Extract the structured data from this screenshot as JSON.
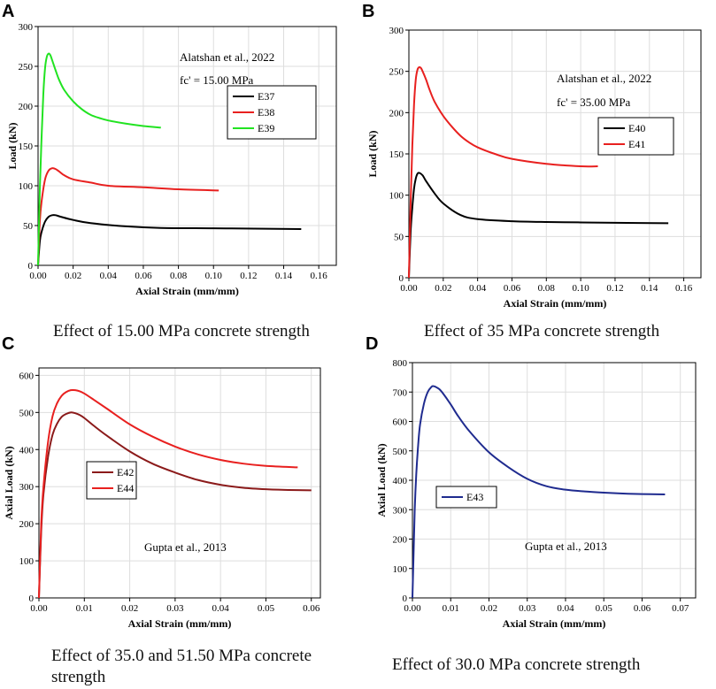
{
  "panels": [
    {
      "letter": "A",
      "caption": "Effect of 15.00 MPa concrete strength",
      "chart_data": {
        "type": "line",
        "title": "",
        "xlabel": "Axial Strain (mm/mm)",
        "ylabel": "Load (kN)",
        "xlim": [
          0,
          0.17
        ],
        "ylim": [
          0,
          300
        ],
        "xticks": [
          0,
          0.02,
          0.04,
          0.06,
          0.08,
          0.1,
          0.12,
          0.14,
          0.16
        ],
        "xtick_labels": [
          "0.00",
          "0.02",
          "0.04",
          "0.06",
          "0.08",
          "0.10",
          "0.12",
          "0.14",
          "0.16"
        ],
        "yticks": [
          0,
          50,
          100,
          150,
          200,
          250,
          300
        ],
        "ytick_labels": [
          "0",
          "50",
          "100",
          "150",
          "200",
          "250",
          "300"
        ],
        "grid": true,
        "annotations": [
          "Alatshan et al., 2022",
          "fc' = 15.00 MPa"
        ],
        "legend_position": "upper-right",
        "series": [
          {
            "name": "E37",
            "color": "#000000",
            "x": [
              0,
              0.001,
              0.002,
              0.004,
              0.006,
              0.008,
              0.01,
              0.013,
              0.02,
              0.03,
              0.05,
              0.07,
              0.1,
              0.13,
              0.15
            ],
            "y": [
              0,
              30,
              42,
              55,
              61,
              63,
              63,
              61,
              57,
              53,
              49,
              47,
              46.5,
              46,
              45.5
            ]
          },
          {
            "name": "E38",
            "color": "#e8201f",
            "x": [
              0,
              0.001,
              0.002,
              0.004,
              0.006,
              0.008,
              0.01,
              0.012,
              0.015,
              0.02,
              0.03,
              0.04,
              0.06,
              0.08,
              0.103
            ],
            "y": [
              0,
              55,
              80,
              108,
              119,
              122,
              121,
              118,
              113,
              108,
              104,
              100,
              98,
              95.5,
              94
            ]
          },
          {
            "name": "E39",
            "color": "#21e321",
            "x": [
              0,
              0.001,
              0.002,
              0.003,
              0.004,
              0.005,
              0.006,
              0.007,
              0.008,
              0.01,
              0.012,
              0.015,
              0.02,
              0.025,
              0.03,
              0.035,
              0.04,
              0.05,
              0.06,
              0.07
            ],
            "y": [
              0,
              95,
              160,
              215,
              248,
              262,
              266,
              264,
              258,
              245,
              233,
              220,
              206,
              196,
              189,
              185,
              182,
              178,
              175,
              173
            ]
          }
        ]
      }
    },
    {
      "letter": "B",
      "caption": "Effect of 35 MPa concrete strength",
      "chart_data": {
        "type": "line",
        "title": "",
        "xlabel": "Axial Strain (mm/mm)",
        "ylabel": "Load (kN)",
        "xlim": [
          0,
          0.17
        ],
        "ylim": [
          0,
          300
        ],
        "xticks": [
          0,
          0.02,
          0.04,
          0.06,
          0.08,
          0.1,
          0.12,
          0.14,
          0.16
        ],
        "xtick_labels": [
          "0.00",
          "0.02",
          "0.04",
          "0.06",
          "0.08",
          "0.10",
          "0.12",
          "0.14",
          "0.16"
        ],
        "yticks": [
          0,
          50,
          100,
          150,
          200,
          250,
          300
        ],
        "ytick_labels": [
          "0",
          "50",
          "100",
          "150",
          "200",
          "250",
          "300"
        ],
        "grid": true,
        "annotations": [
          "Alatshan et al., 2022",
          "fc' = 35.00 MPa"
        ],
        "legend_position": "upper-right",
        "series": [
          {
            "name": "E40",
            "color": "#000000",
            "x": [
              0,
              0.001,
              0.002,
              0.003,
              0.004,
              0.005,
              0.006,
              0.008,
              0.01,
              0.015,
              0.02,
              0.03,
              0.04,
              0.06,
              0.08,
              0.1,
              0.12,
              0.151
            ],
            "y": [
              0,
              55,
              85,
              108,
              120,
              126,
              127,
              124,
              117,
              102,
              90,
              76,
              71,
              68.5,
              67.5,
              67,
              66.5,
              66
            ]
          },
          {
            "name": "E41",
            "color": "#e8201f",
            "x": [
              0,
              0.001,
              0.002,
              0.003,
              0.004,
              0.005,
              0.006,
              0.007,
              0.008,
              0.01,
              0.012,
              0.015,
              0.02,
              0.025,
              0.03,
              0.035,
              0.04,
              0.05,
              0.06,
              0.08,
              0.1,
              0.11
            ],
            "y": [
              0,
              90,
              160,
              210,
              240,
              252,
              255,
              254,
              250,
              240,
              228,
              213,
              196,
              183,
              172,
              164,
              158,
              150,
              144,
              138,
              135,
              135
            ]
          }
        ]
      }
    },
    {
      "letter": "C",
      "caption": "Effect of 35.0 and 51.50 MPa concrete strength",
      "chart_data": {
        "type": "line",
        "title": "",
        "xlabel": "Axial Strain (mm/mm)",
        "ylabel": "Axial Load (kN)",
        "xlim": [
          0,
          0.062
        ],
        "ylim": [
          0,
          620
        ],
        "xticks": [
          0,
          0.01,
          0.02,
          0.03,
          0.04,
          0.05,
          0.06
        ],
        "xtick_labels": [
          "0.00",
          "0.01",
          "0.02",
          "0.03",
          "0.04",
          "0.05",
          "0.06"
        ],
        "yticks": [
          0,
          100,
          200,
          300,
          400,
          500,
          600
        ],
        "ytick_labels": [
          "0",
          "100",
          "200",
          "300",
          "400",
          "500",
          "600"
        ],
        "grid": true,
        "annotations": [
          "Gupta et al., 2013"
        ],
        "legend_position": "center-left",
        "series": [
          {
            "name": "E42",
            "color": "#8b1a1a",
            "x": [
              0,
              0.0005,
              0.001,
              0.002,
              0.003,
              0.004,
              0.005,
              0.006,
              0.007,
              0.008,
              0.009,
              0.01,
              0.012,
              0.015,
              0.02,
              0.025,
              0.03,
              0.035,
              0.04,
              0.045,
              0.05,
              0.055,
              0.06
            ],
            "y": [
              0,
              180,
              280,
              380,
              440,
              470,
              488,
              496,
              500,
              498,
              493,
              485,
              465,
              437,
              395,
              362,
              338,
              318,
              305,
              297,
              293,
              291,
              290
            ]
          },
          {
            "name": "E44",
            "color": "#e8201f",
            "x": [
              0,
              0.0005,
              0.001,
              0.002,
              0.003,
              0.004,
              0.005,
              0.006,
              0.007,
              0.008,
              0.009,
              0.01,
              0.012,
              0.015,
              0.02,
              0.025,
              0.03,
              0.035,
              0.04,
              0.045,
              0.05,
              0.057
            ],
            "y": [
              0,
              200,
              300,
              420,
              490,
              525,
              545,
              555,
              560,
              560,
              557,
              551,
              535,
              510,
              468,
              435,
              408,
              387,
              372,
              362,
              356,
              352
            ]
          }
        ]
      }
    },
    {
      "letter": "D",
      "caption": "Effect of 30.0 MPa concrete strength",
      "chart_data": {
        "type": "line",
        "title": "",
        "xlabel": "Axial Strain (mm/mm)",
        "ylabel": "Axial Load (kN)",
        "xlim": [
          0,
          0.074
        ],
        "ylim": [
          0,
          800
        ],
        "xticks": [
          0,
          0.01,
          0.02,
          0.03,
          0.04,
          0.05,
          0.06,
          0.07
        ],
        "xtick_labels": [
          "0.00",
          "0.01",
          "0.02",
          "0.03",
          "0.04",
          "0.05",
          "0.06",
          "0.07"
        ],
        "yticks": [
          0,
          100,
          200,
          300,
          400,
          500,
          600,
          700,
          800
        ],
        "ytick_labels": [
          "0",
          "100",
          "200",
          "300",
          "400",
          "500",
          "600",
          "700",
          "800"
        ],
        "grid": true,
        "annotations": [
          "Gupta et al., 2013"
        ],
        "legend_position": "center-left",
        "series": [
          {
            "name": "E43",
            "color": "#1f2b8f",
            "x": [
              0,
              0.0003,
              0.0006,
              0.001,
              0.0015,
              0.002,
              0.003,
              0.004,
              0.005,
              0.0055,
              0.006,
              0.007,
              0.008,
              0.01,
              0.012,
              0.015,
              0.02,
              0.025,
              0.03,
              0.035,
              0.04,
              0.045,
              0.05,
              0.055,
              0.06,
              0.066
            ],
            "y": [
              0,
              150,
              300,
              420,
              520,
              590,
              660,
              700,
              718,
              720,
              718,
              710,
              695,
              658,
              617,
              565,
              495,
              445,
              405,
              380,
              368,
              362,
              358,
              355,
              353,
              352
            ]
          }
        ]
      }
    }
  ]
}
